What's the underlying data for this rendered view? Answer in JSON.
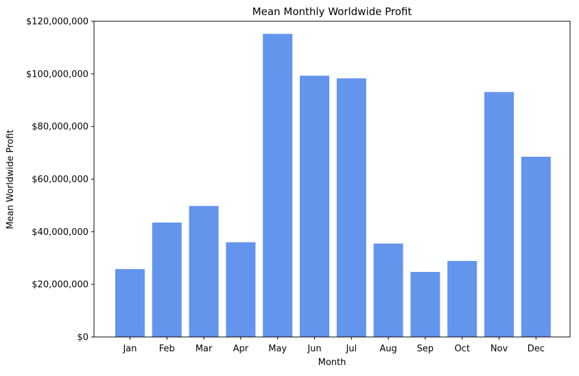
{
  "chart_data": {
    "type": "bar",
    "title": "Mean Monthly Worldwide Profit",
    "xlabel": "Month",
    "ylabel": "Mean Worldwide Profit",
    "categories": [
      "Jan",
      "Feb",
      "Mar",
      "Apr",
      "May",
      "Jun",
      "Jul",
      "Aug",
      "Sep",
      "Oct",
      "Nov",
      "Dec"
    ],
    "values": [
      25800000,
      43500000,
      49800000,
      36000000,
      115200000,
      99300000,
      98300000,
      35500000,
      24700000,
      28900000,
      93100000,
      68500000
    ],
    "ylim": [
      0,
      120000000
    ],
    "yticks": [
      0,
      20000000,
      40000000,
      60000000,
      80000000,
      100000000,
      120000000
    ],
    "ytick_labels": [
      "$0",
      "$20,000,000",
      "$40,000,000",
      "$60,000,000",
      "$80,000,000",
      "$100,000,000",
      "$120,000,000"
    ],
    "bar_color": "#6495ED",
    "grid": false,
    "legend": "none"
  }
}
